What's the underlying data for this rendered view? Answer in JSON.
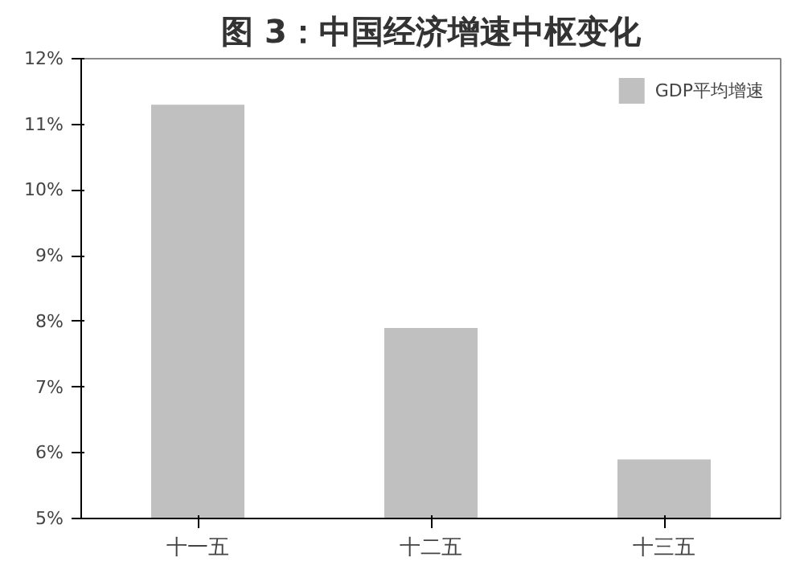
{
  "chart_data": {
    "type": "bar",
    "title": "图 3：中国经济增速中枢变化",
    "categories": [
      "十一五",
      "十二五",
      "十三五"
    ],
    "series": [
      {
        "name": "GDP平均增速",
        "color": "#c0c0c0",
        "values": [
          11.3,
          7.9,
          5.9
        ]
      }
    ],
    "ylim": [
      5,
      12
    ],
    "yticks": [
      {
        "value": 5,
        "label": "5%"
      },
      {
        "value": 6,
        "label": "6%"
      },
      {
        "value": 7,
        "label": "7%"
      },
      {
        "value": 8,
        "label": "8%"
      },
      {
        "value": 9,
        "label": "9%"
      },
      {
        "value": 10,
        "label": "10%"
      },
      {
        "value": 11,
        "label": "11%"
      },
      {
        "value": 12,
        "label": "12%"
      }
    ],
    "grid": false,
    "legend": "top right"
  }
}
